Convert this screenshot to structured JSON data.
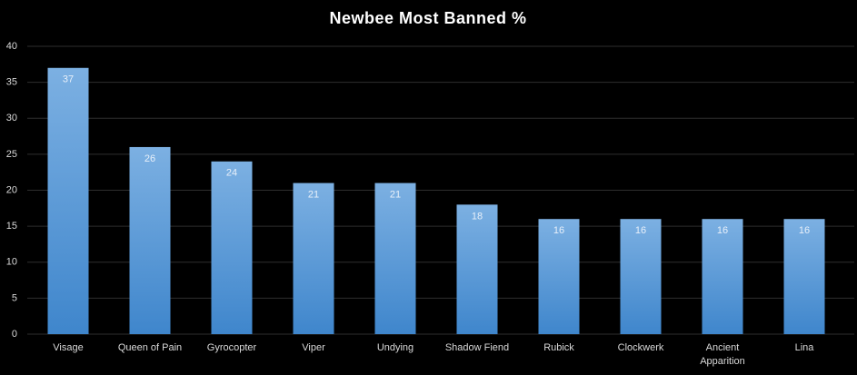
{
  "chart_data": {
    "type": "bar",
    "title": "Newbee Most Banned %",
    "categories": [
      "Visage",
      "Queen of Pain",
      "Gyrocopter",
      "Viper",
      "Undying",
      "Shadow Fiend",
      "Rubick",
      "Clockwerk",
      "Ancient Apparition",
      "Lina"
    ],
    "values": [
      37,
      26,
      24,
      21,
      21,
      18,
      16,
      16,
      16,
      16
    ],
    "color": "#5b9bd5",
    "ylim": [
      0,
      40
    ],
    "yticks": [
      0,
      5,
      10,
      15,
      20,
      25,
      30,
      35,
      40
    ],
    "grid": true
  }
}
